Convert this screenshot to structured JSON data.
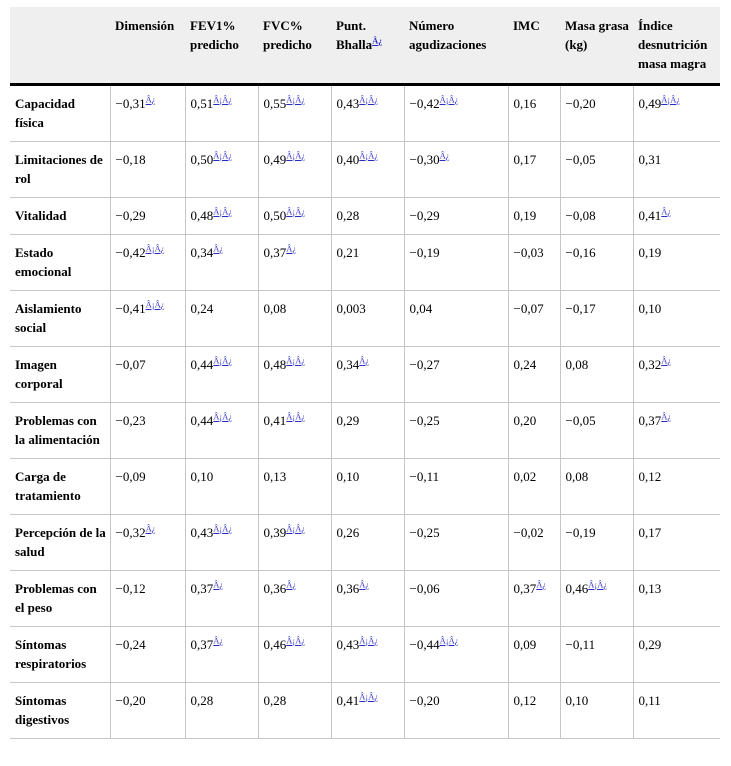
{
  "table": {
    "markers": {
      "single": "Â¿",
      "double": "Â¡Â¿"
    },
    "columns": [
      {
        "label": "",
        "marker": ""
      },
      {
        "label": "Dimensión",
        "marker": ""
      },
      {
        "label": "FEV1% predicho",
        "marker": ""
      },
      {
        "label": "FVC% predicho",
        "marker": ""
      },
      {
        "label": "Punt. Bhalla",
        "marker": "single"
      },
      {
        "label": "Número agudizaciones",
        "marker": ""
      },
      {
        "label": "IMC",
        "marker": ""
      },
      {
        "label": "Masa grasa (kg)",
        "marker": ""
      },
      {
        "label": "Índice desnutrición masa magra",
        "marker": ""
      }
    ],
    "rows": [
      {
        "label": "Capacidad física",
        "cells": [
          {
            "v": "−0,31",
            "m": "single"
          },
          {
            "v": "0,51",
            "m": "double"
          },
          {
            "v": "0,55",
            "m": "double"
          },
          {
            "v": "0,43",
            "m": "double"
          },
          {
            "v": "−0,42",
            "m": "double"
          },
          {
            "v": "0,16",
            "m": ""
          },
          {
            "v": "−0,20",
            "m": ""
          },
          {
            "v": "0,49",
            "m": "double"
          }
        ]
      },
      {
        "label": "Limitaciones de rol",
        "cells": [
          {
            "v": "−0,18",
            "m": ""
          },
          {
            "v": "0,50",
            "m": "double"
          },
          {
            "v": "0,49",
            "m": "double"
          },
          {
            "v": "0,40",
            "m": "double"
          },
          {
            "v": "−0,30",
            "m": "single"
          },
          {
            "v": "0,17",
            "m": ""
          },
          {
            "v": "−0,05",
            "m": ""
          },
          {
            "v": "0,31",
            "m": ""
          }
        ]
      },
      {
        "label": "Vitalidad",
        "cells": [
          {
            "v": "−0,29",
            "m": ""
          },
          {
            "v": "0,48",
            "m": "double"
          },
          {
            "v": "0,50",
            "m": "double"
          },
          {
            "v": "0,28",
            "m": ""
          },
          {
            "v": "−0,29",
            "m": ""
          },
          {
            "v": "0,19",
            "m": ""
          },
          {
            "v": "−0,08",
            "m": ""
          },
          {
            "v": "0,41",
            "m": "single"
          }
        ]
      },
      {
        "label": "Estado emocional",
        "cells": [
          {
            "v": "−0,42",
            "m": "double"
          },
          {
            "v": "0,34",
            "m": "single"
          },
          {
            "v": "0,37",
            "m": "single"
          },
          {
            "v": "0,21",
            "m": ""
          },
          {
            "v": "−0,19",
            "m": ""
          },
          {
            "v": "−0,03",
            "m": ""
          },
          {
            "v": "−0,16",
            "m": ""
          },
          {
            "v": "0,19",
            "m": ""
          }
        ]
      },
      {
        "label": "Aislamiento social",
        "cells": [
          {
            "v": "−0,41",
            "m": "double"
          },
          {
            "v": "0,24",
            "m": ""
          },
          {
            "v": "0,08",
            "m": ""
          },
          {
            "v": "0,003",
            "m": ""
          },
          {
            "v": "0,04",
            "m": ""
          },
          {
            "v": "−0,07",
            "m": ""
          },
          {
            "v": "−0,17",
            "m": ""
          },
          {
            "v": "0,10",
            "m": ""
          }
        ]
      },
      {
        "label": "Imagen corporal",
        "cells": [
          {
            "v": "−0,07",
            "m": ""
          },
          {
            "v": "0,44",
            "m": "double"
          },
          {
            "v": "0,48",
            "m": "double"
          },
          {
            "v": "0,34",
            "m": "single"
          },
          {
            "v": "−0,27",
            "m": ""
          },
          {
            "v": "0,24",
            "m": ""
          },
          {
            "v": "0,08",
            "m": ""
          },
          {
            "v": "0,32",
            "m": "single"
          }
        ]
      },
      {
        "label": "Problemas con la alimentación",
        "cells": [
          {
            "v": "−0,23",
            "m": ""
          },
          {
            "v": "0,44",
            "m": "double"
          },
          {
            "v": "0,41",
            "m": "double"
          },
          {
            "v": "0,29",
            "m": ""
          },
          {
            "v": "−0,25",
            "m": ""
          },
          {
            "v": "0,20",
            "m": ""
          },
          {
            "v": "−0,05",
            "m": ""
          },
          {
            "v": "0,37",
            "m": "single"
          }
        ]
      },
      {
        "label": "Carga de tratamiento",
        "cells": [
          {
            "v": "−0,09",
            "m": ""
          },
          {
            "v": "0,10",
            "m": ""
          },
          {
            "v": "0,13",
            "m": ""
          },
          {
            "v": "0,10",
            "m": ""
          },
          {
            "v": "−0,11",
            "m": ""
          },
          {
            "v": "0,02",
            "m": ""
          },
          {
            "v": "0,08",
            "m": ""
          },
          {
            "v": "0,12",
            "m": ""
          }
        ]
      },
      {
        "label": "Percepción de la salud",
        "cells": [
          {
            "v": "−0,32",
            "m": "single"
          },
          {
            "v": "0,43",
            "m": "double"
          },
          {
            "v": "0,39",
            "m": "double"
          },
          {
            "v": "0,26",
            "m": ""
          },
          {
            "v": "−0,25",
            "m": ""
          },
          {
            "v": "−0,02",
            "m": ""
          },
          {
            "v": "−0,19",
            "m": ""
          },
          {
            "v": "0,17",
            "m": ""
          }
        ]
      },
      {
        "label": "Problemas con el peso",
        "cells": [
          {
            "v": "−0,12",
            "m": ""
          },
          {
            "v": "0,37",
            "m": "single"
          },
          {
            "v": "0,36",
            "m": "single"
          },
          {
            "v": "0,36",
            "m": "single"
          },
          {
            "v": "−0,06",
            "m": ""
          },
          {
            "v": "0,37",
            "m": "single"
          },
          {
            "v": "0,46",
            "m": "double"
          },
          {
            "v": "0,13",
            "m": ""
          }
        ]
      },
      {
        "label": "Síntomas respiratorios",
        "cells": [
          {
            "v": "−0,24",
            "m": ""
          },
          {
            "v": "0,37",
            "m": "single"
          },
          {
            "v": "0,46",
            "m": "double"
          },
          {
            "v": "0,43",
            "m": "double"
          },
          {
            "v": "−0,44",
            "m": "double"
          },
          {
            "v": "0,09",
            "m": ""
          },
          {
            "v": "−0,11",
            "m": ""
          },
          {
            "v": "0,29",
            "m": ""
          }
        ]
      },
      {
        "label": "Síntomas digestivos",
        "cells": [
          {
            "v": "−0,20",
            "m": ""
          },
          {
            "v": "0,28",
            "m": ""
          },
          {
            "v": "0,28",
            "m": ""
          },
          {
            "v": "0,41",
            "m": "double"
          },
          {
            "v": "−0,20",
            "m": ""
          },
          {
            "v": "0,12",
            "m": ""
          },
          {
            "v": "0,10",
            "m": ""
          },
          {
            "v": "0,11",
            "m": ""
          }
        ]
      }
    ]
  },
  "colors": {
    "header_bg": "#efefef",
    "grid_line": "#c6c6c6",
    "header_rule": "#000000",
    "footnote_link": "#2a2ac8"
  }
}
